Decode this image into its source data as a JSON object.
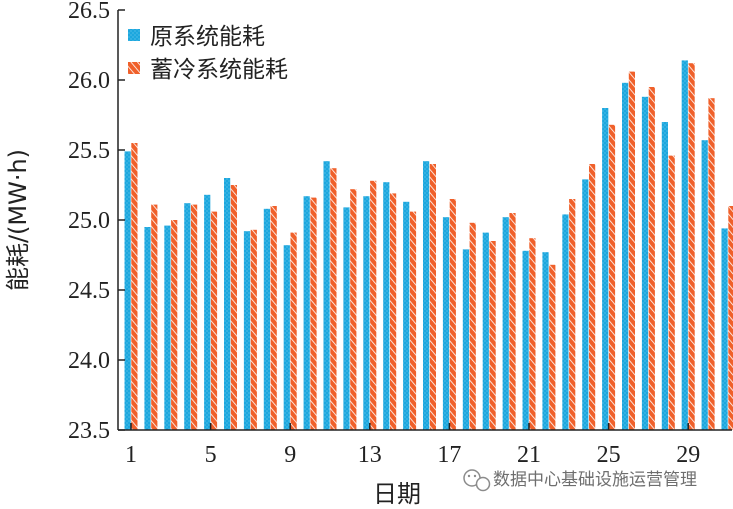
{
  "chart_data": {
    "type": "bar",
    "xlabel": "日期",
    "ylabel": "能耗/(MW·h)",
    "ylim": [
      23.5,
      26.5
    ],
    "yticks": [
      "23.5",
      "24.0",
      "24.5",
      "25.0",
      "25.5",
      "26.0",
      "26.5"
    ],
    "x": [
      1,
      2,
      3,
      4,
      5,
      6,
      7,
      8,
      9,
      10,
      11,
      12,
      13,
      14,
      15,
      16,
      17,
      18,
      19,
      20,
      21,
      22,
      23,
      24,
      25,
      26,
      27,
      28,
      29,
      30,
      31
    ],
    "xtick_labels": [
      "1",
      "5",
      "9",
      "13",
      "17",
      "21",
      "25",
      "29"
    ],
    "xtick_positions": [
      1,
      5,
      9,
      13,
      17,
      21,
      25,
      29
    ],
    "legend_position": "top-left",
    "grid": false,
    "series": [
      {
        "name": "原系统能耗",
        "color": "#1ca7de",
        "values": [
          25.49,
          24.95,
          24.96,
          25.12,
          25.18,
          25.3,
          24.92,
          25.08,
          24.82,
          25.17,
          25.42,
          25.09,
          25.17,
          25.27,
          25.13,
          25.42,
          25.02,
          24.79,
          24.91,
          25.02,
          24.78,
          24.77,
          25.04,
          25.29,
          25.8,
          25.98,
          25.88,
          25.7,
          26.14,
          25.57,
          24.94
        ]
      },
      {
        "name": "蓄冷系统能耗",
        "color": "#f0602a",
        "values": [
          25.55,
          25.11,
          25.0,
          25.11,
          25.06,
          25.25,
          24.93,
          25.1,
          24.91,
          25.16,
          25.37,
          25.22,
          25.28,
          25.19,
          25.06,
          25.4,
          25.15,
          24.98,
          24.85,
          25.05,
          24.87,
          24.68,
          25.15,
          25.4,
          25.68,
          26.06,
          25.95,
          25.46,
          26.12,
          25.87,
          25.1
        ]
      }
    ]
  },
  "watermark": {
    "text": "数据中心基础设施运营管理",
    "icon": "wechat-icon"
  }
}
